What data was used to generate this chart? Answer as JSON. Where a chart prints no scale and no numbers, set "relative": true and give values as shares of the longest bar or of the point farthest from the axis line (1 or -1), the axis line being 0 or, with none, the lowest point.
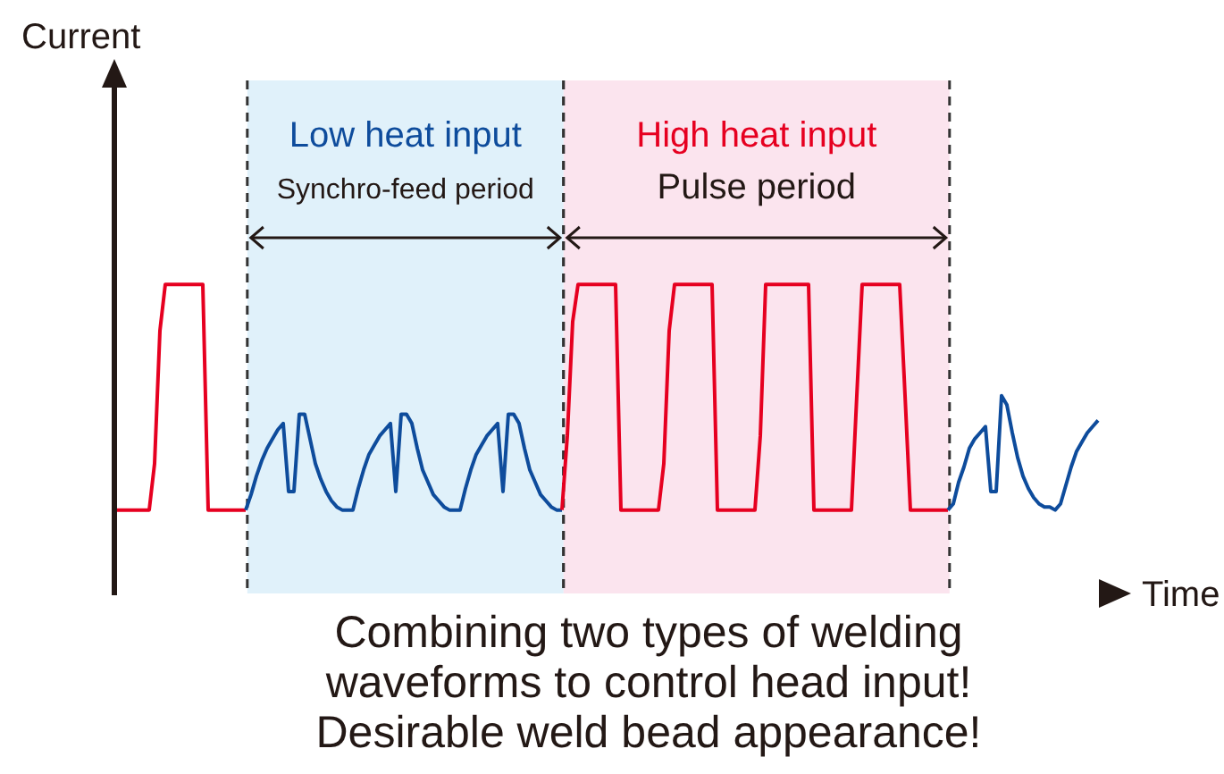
{
  "chart_data": {
    "type": "line",
    "relative": true,
    "xlabel": "Time",
    "categories": [
      null,
      null,
      null,
      null,
      null,
      null,
      null,
      null,
      null,
      null,
      null,
      null,
      null,
      null,
      null,
      null,
      null,
      null,
      null,
      null,
      null,
      null,
      null,
      null,
      null,
      null,
      null,
      null,
      null,
      null,
      null,
      null,
      null,
      null,
      null,
      null,
      null,
      null,
      null,
      null,
      null,
      null,
      null,
      null,
      null,
      null,
      null,
      null,
      null,
      null,
      null,
      null,
      null,
      null,
      null,
      null,
      null,
      null,
      null,
      null,
      null,
      null,
      null,
      null,
      null,
      null,
      null,
      null,
      null,
      null,
      null,
      null,
      null,
      null,
      null,
      null,
      null,
      null,
      null,
      null,
      null,
      null,
      null,
      null,
      null,
      null,
      null,
      null,
      null,
      null,
      null,
      null,
      null,
      null,
      null,
      null,
      null,
      null,
      null,
      null,
      null,
      null,
      null,
      null,
      null,
      null,
      null,
      null,
      null,
      null,
      null,
      null,
      null,
      null,
      null,
      null,
      null,
      null,
      null,
      null,
      null,
      null,
      null,
      null,
      null,
      null,
      null,
      null,
      null,
      null,
      null,
      null,
      null,
      null,
      null,
      null,
      null,
      null,
      null,
      null,
      null,
      null,
      null,
      null,
      null,
      null,
      null,
      null,
      null,
      null,
      null,
      null,
      null,
      null,
      null,
      null,
      null,
      null,
      null,
      null,
      null,
      null,
      null,
      null,
      null,
      null,
      null,
      null,
      null,
      null,
      null,
      null,
      null,
      null,
      null,
      null,
      null,
      null,
      null,
      null,
      null,
      null,
      null,
      null
    ],
    "series": [
      {
        "color": "#e60020",
        "values": [
          0.27,
          0.27,
          0.27,
          0.27,
          0.27,
          0.27,
          0.27,
          0.42,
          0.85,
          1,
          1,
          1,
          1,
          1,
          1,
          1,
          1,
          0.27,
          0.27,
          0.27,
          0.27,
          0.27,
          0.27,
          0.27,
          0.27,
          null,
          null,
          null,
          null,
          null,
          null,
          null,
          null,
          null,
          null,
          null,
          null,
          null,
          null,
          null,
          null,
          null,
          null,
          null,
          null,
          null,
          null,
          null,
          null,
          null,
          null,
          null,
          null,
          null,
          null,
          null,
          null,
          null,
          null,
          null,
          null,
          null,
          null,
          null,
          null,
          null,
          null,
          null,
          null,
          null,
          null,
          null,
          null,
          null,
          null,
          null,
          null,
          null,
          null,
          null,
          null,
          null,
          null,
          null,
          null,
          null,
          null,
          null,
          null,
          null,
          null,
          null,
          null,
          null,
          null,
          null,
          null,
          null,
          null,
          null,
          null,
          null,
          null,
          null,
          null,
          null,
          null,
          null,
          null,
          null,
          null,
          null,
          null,
          null,
          null,
          null,
          null,
          null,
          null,
          null,
          null,
          null,
          null,
          null,
          null,
          null,
          null,
          null,
          null,
          null,
          null,
          null,
          null,
          null,
          null,
          null,
          null,
          null,
          null,
          null,
          null,
          null,
          null,
          null,
          null,
          null,
          null,
          null,
          null,
          null,
          null,
          null,
          null,
          null,
          null,
          null,
          null,
          null,
          null,
          null,
          null,
          null,
          null,
          null,
          null,
          null,
          null,
          null,
          null,
          null,
          null,
          null,
          null,
          null,
          null,
          null,
          null,
          null,
          null,
          null,
          null,
          null,
          null,
          null
        ]
      },
      {
        "color": "#0e4c9c",
        "values": [
          null,
          null,
          null,
          null,
          null,
          null,
          null,
          null,
          null,
          null,
          null,
          null,
          null,
          null,
          null,
          null,
          null,
          null,
          null,
          null,
          null,
          null,
          null,
          null,
          0.27,
          0.32,
          0.38,
          0.43,
          0.47,
          0.5,
          0.53,
          0.55,
          0.33,
          0.33,
          0.58,
          0.58,
          0.5,
          0.42,
          0.37,
          0.33,
          0.3,
          0.28,
          0.27,
          0.27,
          0.27,
          0.34,
          0.4,
          0.45,
          0.48,
          0.51,
          0.53,
          0.55,
          0.33,
          0.58,
          0.58,
          0.55,
          0.47,
          0.4,
          0.36,
          0.32,
          0.3,
          0.28,
          0.27,
          0.27,
          0.27,
          0.34,
          0.4,
          0.45,
          0.48,
          0.51,
          0.53,
          0.55,
          0.33,
          0.58,
          0.58,
          0.55,
          0.47,
          0.4,
          0.36,
          0.32,
          0.3,
          0.28,
          0.27,
          0.27,
          null,
          null,
          null,
          null,
          null,
          null,
          null,
          null,
          null,
          null,
          null,
          null,
          null,
          null,
          null,
          null,
          null,
          null,
          null,
          null,
          null,
          null,
          null,
          null,
          null,
          null,
          null,
          null,
          null,
          null,
          null,
          null,
          null,
          null,
          null,
          null,
          null,
          null,
          null,
          null,
          null,
          null,
          null,
          null,
          null,
          null,
          null,
          null,
          null,
          null,
          null,
          null,
          null,
          null,
          null,
          null,
          null,
          null,
          null,
          null,
          null,
          null,
          null,
          null,
          null,
          null,
          null,
          null,
          null,
          null,
          null,
          null,
          null,
          null,
          null,
          null,
          null,
          null,
          null,
          null,
          null,
          null,
          null,
          null,
          null,
          null,
          null,
          null,
          null,
          null,
          null,
          null,
          null,
          null,
          null,
          null,
          null,
          null,
          null,
          null
        ]
      },
      {
        "color": "#e60020",
        "values": [
          null,
          null,
          null,
          null,
          null,
          null,
          null,
          null,
          null,
          null,
          null,
          null,
          null,
          null,
          null,
          null,
          null,
          null,
          null,
          null,
          null,
          null,
          null,
          null,
          null,
          null,
          null,
          null,
          null,
          null,
          null,
          null,
          null,
          null,
          null,
          null,
          null,
          null,
          null,
          null,
          null,
          null,
          null,
          null,
          null,
          null,
          null,
          null,
          null,
          null,
          null,
          null,
          null,
          null,
          null,
          null,
          null,
          null,
          null,
          null,
          null,
          null,
          null,
          null,
          null,
          null,
          null,
          null,
          null,
          null,
          null,
          null,
          null,
          null,
          null,
          null,
          null,
          null,
          null,
          null,
          null,
          null,
          null,
          0.27,
          0.51,
          0.88,
          1,
          1,
          1,
          1,
          1,
          1,
          1,
          1,
          0.27,
          0.27,
          0.27,
          0.27,
          0.27,
          0.27,
          0.27,
          0.27,
          0.42,
          0.85,
          1,
          1,
          1,
          1,
          1,
          1,
          1,
          1,
          0.27,
          0.27,
          0.27,
          0.27,
          0.27,
          0.27,
          0.27,
          0.27,
          0.51,
          1,
          1,
          1,
          1,
          1,
          1,
          1,
          1,
          1,
          0.27,
          0.27,
          0.27,
          0.27,
          0.27,
          0.27,
          0.27,
          0.27,
          0.64,
          1,
          1,
          1,
          1,
          1,
          1,
          1,
          1,
          0.64,
          0.27,
          0.27,
          0.27,
          0.27,
          0.27,
          0.27,
          0.27,
          0.27,
          null,
          null,
          null,
          null,
          null,
          null,
          null,
          null,
          null,
          null,
          null,
          null,
          null,
          null,
          null,
          null,
          null,
          null,
          null,
          null,
          null,
          null,
          null,
          null,
          null,
          null,
          null,
          null
        ]
      },
      {
        "color": "#0e4c9c",
        "values": [
          null,
          null,
          null,
          null,
          null,
          null,
          null,
          null,
          null,
          null,
          null,
          null,
          null,
          null,
          null,
          null,
          null,
          null,
          null,
          null,
          null,
          null,
          null,
          null,
          null,
          null,
          null,
          null,
          null,
          null,
          null,
          null,
          null,
          null,
          null,
          null,
          null,
          null,
          null,
          null,
          null,
          null,
          null,
          null,
          null,
          null,
          null,
          null,
          null,
          null,
          null,
          null,
          null,
          null,
          null,
          null,
          null,
          null,
          null,
          null,
          null,
          null,
          null,
          null,
          null,
          null,
          null,
          null,
          null,
          null,
          null,
          null,
          null,
          null,
          null,
          null,
          null,
          null,
          null,
          null,
          null,
          null,
          null,
          null,
          null,
          null,
          null,
          null,
          null,
          null,
          null,
          null,
          null,
          null,
          null,
          null,
          null,
          null,
          null,
          null,
          null,
          null,
          null,
          null,
          null,
          null,
          null,
          null,
          null,
          null,
          null,
          null,
          null,
          null,
          null,
          null,
          null,
          null,
          null,
          null,
          null,
          null,
          null,
          null,
          null,
          null,
          null,
          null,
          null,
          null,
          null,
          null,
          null,
          null,
          null,
          null,
          null,
          null,
          null,
          null,
          null,
          null,
          null,
          null,
          null,
          null,
          null,
          null,
          null,
          null,
          null,
          null,
          null,
          null,
          null,
          0.27,
          0.29,
          0.36,
          0.41,
          0.47,
          0.5,
          0.52,
          0.54,
          0.33,
          0.33,
          0.64,
          0.61,
          0.52,
          0.44,
          0.38,
          0.34,
          0.31,
          0.29,
          0.28,
          0.28,
          0.27,
          0.29,
          0.35,
          0.41,
          0.46,
          0.49,
          0.52,
          0.54,
          0.56
        ]
      }
    ],
    "annotations": [
      "Low heat input",
      "Synchro-feed period",
      "High heat input",
      "Pulse period",
      "Current",
      "Combining two types of welding\nwaveforms to control head input!\nDesirable weld bead appearance!"
    ]
  }
}
